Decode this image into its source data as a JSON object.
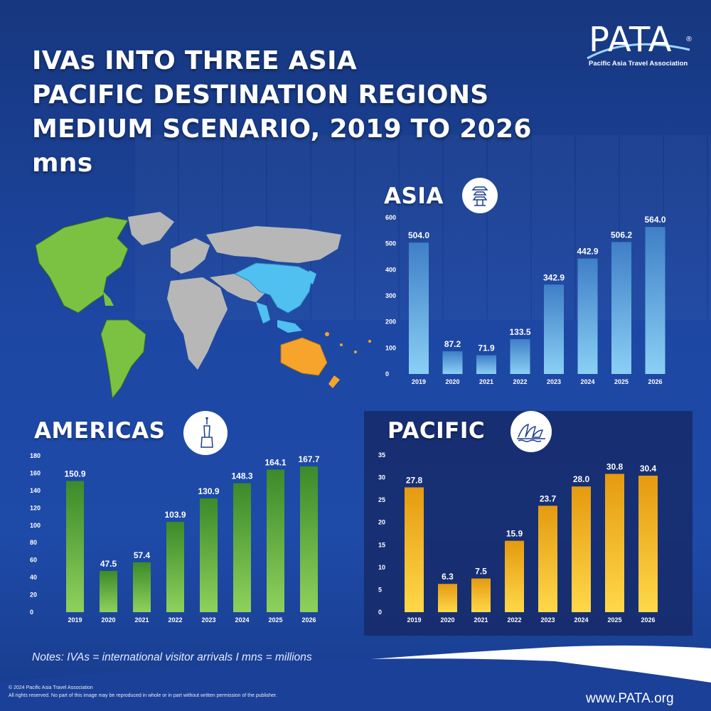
{
  "title_lines": [
    "IVAs INTO THREE ASIA",
    "PACIFIC DESTINATION REGIONS",
    "MEDIUM SCENARIO, 2019 TO 2026",
    "mns"
  ],
  "logo": {
    "word": "PATA",
    "registered": "®",
    "subtitle": "Pacific Asia Travel Association"
  },
  "colors": {
    "asia": "#4da8e8",
    "americas": "#67b83a",
    "pacific": "#f2b51c",
    "background": "#1d47a3"
  },
  "icons": {
    "asia": "pagoda-icon",
    "americas": "statue-of-liberty-icon",
    "pacific": "opera-house-icon"
  },
  "chart_data": [
    {
      "type": "bar",
      "title": "ASIA",
      "categories": [
        "2019",
        "2020",
        "2021",
        "2022",
        "2023",
        "2024",
        "2025",
        "2026"
      ],
      "values": [
        504.0,
        87.2,
        71.9,
        133.5,
        342.9,
        442.9,
        506.2,
        564.0
      ],
      "value_labels": [
        "504.0",
        "87.2",
        "71.9",
        "133.5",
        "342.9",
        "442.9",
        "506.2",
        "564.0"
      ],
      "yticks": [
        "0",
        "100",
        "200",
        "300",
        "400",
        "500",
        "600"
      ],
      "ylim": [
        0,
        600
      ],
      "grid": false
    },
    {
      "type": "bar",
      "title": "AMERICAS",
      "categories": [
        "2019",
        "2020",
        "2021",
        "2022",
        "2023",
        "2024",
        "2025",
        "2026"
      ],
      "values": [
        150.9,
        47.5,
        57.4,
        103.9,
        130.9,
        148.3,
        164.1,
        167.7
      ],
      "value_labels": [
        "150.9",
        "47.5",
        "57.4",
        "103.9",
        "130.9",
        "148.3",
        "164.1",
        "167.7"
      ],
      "yticks": [
        "0",
        "20",
        "40",
        "60",
        "80",
        "100",
        "120",
        "140",
        "160",
        "180"
      ],
      "ylim": [
        0,
        180
      ],
      "grid": false
    },
    {
      "type": "bar",
      "title": "PACIFIC",
      "categories": [
        "2019",
        "2020",
        "2021",
        "2022",
        "2023",
        "2024",
        "2025",
        "2026"
      ],
      "values": [
        27.8,
        6.3,
        7.5,
        15.9,
        23.7,
        28.0,
        30.8,
        30.4
      ],
      "value_labels": [
        "27.8",
        "6.3",
        "7.5",
        "15.9",
        "23.7",
        "28.0",
        "30.8",
        "30.4"
      ],
      "yticks": [
        "0",
        "5",
        "10",
        "15",
        "20",
        "25",
        "30",
        "35"
      ],
      "ylim": [
        0,
        35
      ],
      "grid": false
    }
  ],
  "notes": "Notes: IVAs = international visitor arrivals I mns = millions",
  "copyright": [
    "© 2024 Pacific Asia Travel Association",
    "All rights reserved. No part of this image may be reproduced in whole or in part without written permission of the publisher."
  ],
  "url": "www.PATA.org"
}
